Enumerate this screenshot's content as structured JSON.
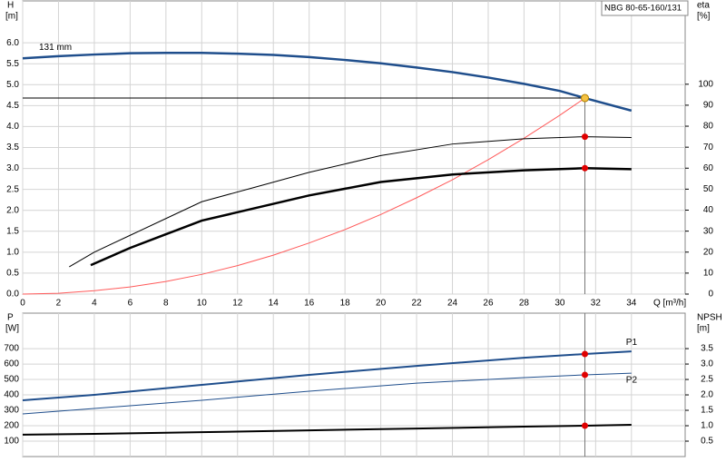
{
  "chart_data": [
    {
      "type": "line",
      "title": "NBG 80-65-160/131",
      "xlabel": "Q [m³/h]",
      "ylabel": "H",
      "yunit": "[m]",
      "y2label": "eta",
      "y2unit": "[%]",
      "xlim": [
        0,
        37
      ],
      "xticks": [
        0,
        2,
        4,
        6,
        8,
        10,
        12,
        14,
        16,
        18,
        20,
        22,
        24,
        26,
        28,
        30,
        32,
        34
      ],
      "ylim": [
        0,
        7
      ],
      "yticks": [
        {
          "value": 0,
          "label": "0.0"
        },
        0.5,
        {
          "value": 1,
          "label": "1.0"
        },
        1.5,
        {
          "value": 2,
          "label": "2.0"
        },
        2.5,
        {
          "value": 3,
          "label": "3.0"
        },
        3.5,
        {
          "value": 4,
          "label": "4.0"
        },
        4.5,
        {
          "value": 5,
          "label": "5.0"
        },
        5.5,
        {
          "value": 6,
          "label": "6.0"
        }
      ],
      "y2lim": [
        0,
        139.7
      ],
      "y2ticks": [
        0,
        10,
        20,
        30,
        40,
        50,
        60,
        70,
        80,
        90,
        100
      ],
      "grid": true,
      "duty_point": {
        "x": 31.4,
        "y": 4.68,
        "color": "#f5c242"
      },
      "series": [
        {
          "name": "131 mm",
          "color": "#1f4e8c",
          "width": 2.5,
          "x": [
            0,
            2,
            4,
            6,
            8,
            10,
            12,
            14,
            16,
            18,
            20,
            22,
            24,
            26,
            28,
            30,
            31.4,
            34
          ],
          "values": [
            5.63,
            5.68,
            5.72,
            5.75,
            5.76,
            5.76,
            5.74,
            5.71,
            5.66,
            5.59,
            5.51,
            5.41,
            5.3,
            5.17,
            5.02,
            4.85,
            4.68,
            4.38
          ]
        },
        {
          "color": "#ff5a5a",
          "width": 1,
          "x": [
            0,
            2,
            4,
            6,
            8,
            10,
            12,
            14,
            16,
            18,
            20,
            22,
            24,
            26,
            28,
            30,
            31.4
          ],
          "values": [
            0,
            0.02,
            0.08,
            0.17,
            0.3,
            0.47,
            0.68,
            0.93,
            1.22,
            1.54,
            1.9,
            2.3,
            2.73,
            3.21,
            3.72,
            4.27,
            4.68
          ]
        },
        {
          "color": "#000000",
          "width": 1,
          "axis": "y2",
          "marker_color": "#e00000",
          "x": [
            2.6,
            4,
            6,
            8,
            10,
            13,
            16,
            20,
            24,
            28,
            31.4,
            34
          ],
          "values": [
            13,
            20,
            28,
            36,
            44,
            51,
            58,
            66,
            71.5,
            74,
            75,
            74.6
          ]
        },
        {
          "color": "#000000",
          "width": 2.5,
          "axis": "y2",
          "marker_color": "#e00000",
          "x": [
            3.8,
            6,
            8,
            10,
            13,
            16,
            20,
            24,
            28,
            31.4,
            34
          ],
          "values": [
            13.8,
            22,
            28.5,
            35,
            41,
            47,
            53.4,
            57,
            59,
            60,
            59.5
          ]
        }
      ]
    },
    {
      "type": "line",
      "ylabel": "P",
      "yunit": "[W]",
      "y2label": "NPSH",
      "y2unit": "[m]",
      "xlim": [
        0,
        37
      ],
      "ylim": [
        0,
        930
      ],
      "yticks": [
        100,
        200,
        300,
        400,
        500,
        600,
        700
      ],
      "y2lim": [
        0,
        4.65
      ],
      "y2ticks": [
        0.5,
        {
          "value": 1,
          "label": "1.0"
        },
        1.5,
        {
          "value": 2,
          "label": "2.0"
        },
        2.5,
        {
          "value": 3,
          "label": "3.0"
        },
        3.5
      ],
      "grid": true,
      "duty_point": {
        "x": 31.4
      },
      "series": [
        {
          "name": "P1",
          "color": "#1f4e8c",
          "width": 2,
          "marker_color": "#e00000",
          "x": [
            0,
            4,
            10,
            16,
            22,
            28,
            31.4,
            34
          ],
          "values": [
            365,
            400,
            465,
            530,
            588,
            641,
            665,
            682
          ]
        },
        {
          "name": "P2",
          "color": "#1f4e8c",
          "width": 1,
          "marker_color": "#e00000",
          "x": [
            0,
            4,
            10,
            16,
            22,
            28,
            31.4,
            34
          ],
          "values": [
            277,
            312,
            365,
            424,
            476,
            512,
            530,
            541
          ]
        },
        {
          "color": "#000000",
          "width": 2,
          "axis": "y2",
          "marker_color": "#e00000",
          "x": [
            0,
            4,
            10,
            16,
            22,
            28,
            31.4,
            34
          ],
          "values": [
            0.71,
            0.735,
            0.79,
            0.85,
            0.91,
            0.97,
            1.0,
            1.03
          ]
        }
      ]
    }
  ]
}
